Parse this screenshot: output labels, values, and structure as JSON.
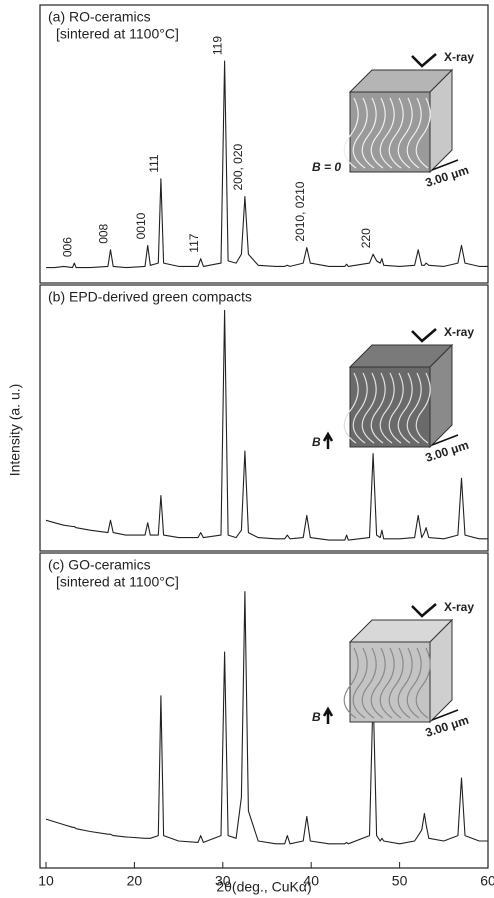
{
  "chart_data": [
    {
      "type": "line",
      "title": "(a) RO-ceramics",
      "subtitle": "[sintered at 1100°C]",
      "xlim": [
        10,
        60
      ],
      "ylim": [
        0,
        100
      ],
      "color": "#222",
      "x": [
        10,
        11,
        12,
        13,
        13.2,
        13.4,
        15,
        17.0,
        17.3,
        17.6,
        19,
        21.2,
        21.5,
        21.8,
        22.7,
        23.0,
        23.3,
        25,
        27.2,
        27.5,
        27.8,
        29.8,
        30.2,
        30.6,
        31.5,
        32.1,
        32.5,
        32.9,
        34,
        36,
        37.0,
        37.3,
        37.6,
        39.1,
        39.5,
        39.9,
        42,
        43.8,
        44,
        44.2,
        46.6,
        47.0,
        47.4,
        47.8,
        48.0,
        48.2,
        50,
        51.7,
        52.1,
        52.5,
        52.8,
        53.0,
        53.3,
        55,
        56.6,
        57.0,
        57.4,
        59,
        60
      ],
      "values": [
        2,
        2,
        2.5,
        2,
        4,
        2,
        2,
        2.5,
        10,
        2.5,
        2,
        2.5,
        12,
        3,
        4,
        42,
        4,
        2.5,
        2.5,
        6,
        2.5,
        4,
        95,
        5,
        4,
        8,
        34,
        8,
        3,
        2.5,
        2.5,
        3,
        2.5,
        4,
        11,
        4,
        2.5,
        2.5,
        3.5,
        2.5,
        4,
        8,
        5,
        4,
        6,
        3,
        2.5,
        3,
        10,
        3,
        3,
        4,
        3,
        2.5,
        4,
        12,
        4,
        2.5,
        2.5
      ],
      "annotations": [
        {
          "text": "006",
          "x": 13.2
        },
        {
          "text": "008",
          "x": 17.3
        },
        {
          "text": "0010",
          "x": 21.5
        },
        {
          "text": "111",
          "x": 23.0
        },
        {
          "text": "117",
          "x": 27.5
        },
        {
          "text": "119",
          "x": 30.2
        },
        {
          "text": "200, 020",
          "x": 32.5
        },
        {
          "text": "2010, 0210",
          "x": 39.5
        },
        {
          "text": "220",
          "x": 47.0
        }
      ],
      "inset": {
        "beam": "X-ray",
        "field": "B = 0",
        "scale": "3.00 μm"
      }
    },
    {
      "type": "line",
      "title": "(b) EPD-derived green compacts",
      "ylabel": "Intensity (a. u.)",
      "xlim": [
        10,
        60
      ],
      "ylim": [
        0,
        100
      ],
      "color": "#222",
      "x": [
        10,
        11,
        12,
        13,
        13.2,
        13.4,
        15,
        17.0,
        17.3,
        17.6,
        19,
        21.2,
        21.5,
        21.8,
        22.7,
        23.0,
        23.3,
        25,
        27.2,
        27.5,
        27.8,
        29.8,
        30.2,
        30.6,
        31.5,
        32.1,
        32.5,
        32.9,
        34,
        36,
        37.0,
        37.3,
        37.6,
        39.1,
        39.5,
        39.9,
        42,
        43.8,
        44,
        44.2,
        46.6,
        47.0,
        47.4,
        47.8,
        48.0,
        48.2,
        50,
        51.7,
        52.1,
        52.5,
        52.8,
        53.0,
        53.3,
        55,
        56.6,
        57.0,
        57.4,
        59,
        60
      ],
      "values": [
        10,
        9,
        8,
        7.5,
        7.5,
        7,
        6,
        5,
        10,
        5,
        4,
        4,
        9,
        4,
        4,
        20,
        4,
        3,
        3,
        5,
        3,
        4,
        95,
        4,
        3,
        6,
        38,
        5,
        3,
        2.5,
        2.5,
        4,
        2.5,
        3,
        12,
        3,
        2,
        2,
        4,
        2,
        3,
        37,
        4,
        3,
        6,
        2.5,
        2.5,
        3,
        12,
        3,
        5,
        7,
        3,
        2.5,
        4,
        27,
        4,
        2.5,
        2.5
      ],
      "inset": {
        "beam": "X-ray",
        "field": "B",
        "scale": "3.00 μm"
      }
    },
    {
      "type": "line",
      "title": "(c) GO-ceramics",
      "subtitle": "[sintered at 1100°C]",
      "xlabel": "2θ(deg., CuKα)",
      "xlim": [
        10,
        60
      ],
      "xticks": [
        10,
        20,
        30,
        40,
        50,
        60
      ],
      "ylim": [
        0,
        100
      ],
      "color": "#222",
      "x": [
        10,
        11,
        12,
        13,
        13.2,
        13.4,
        15,
        17.0,
        17.3,
        17.6,
        19,
        21.2,
        21.5,
        21.8,
        22.7,
        23.0,
        23.3,
        25,
        27.2,
        27.5,
        27.8,
        29.8,
        30.2,
        30.6,
        31.5,
        32.1,
        32.5,
        32.9,
        34,
        36,
        37.0,
        37.3,
        37.6,
        39.1,
        39.5,
        39.9,
        42,
        43.8,
        44,
        44.2,
        46.6,
        47.0,
        47.4,
        47.8,
        48.0,
        48.2,
        50,
        51.7,
        52.1,
        52.5,
        52.8,
        53.0,
        53.3,
        55,
        56.6,
        57.0,
        57.4,
        59,
        60
      ],
      "values": [
        12,
        11,
        10,
        9,
        9,
        8.5,
        7.5,
        6.5,
        6.5,
        6,
        5.5,
        5,
        5,
        5,
        6,
        57,
        6,
        4,
        3.5,
        6,
        3.5,
        6,
        73,
        6,
        5,
        20,
        95,
        15,
        4,
        3,
        3,
        6,
        3,
        4,
        13,
        4,
        3,
        3,
        3.5,
        3,
        6,
        58,
        6,
        4,
        5,
        4,
        3,
        4,
        6,
        8,
        14,
        10,
        5,
        4,
        6,
        27,
        6,
        4,
        4
      ],
      "inset": {
        "beam": "X-ray",
        "field": "B",
        "scale": "3.00 μm"
      }
    }
  ]
}
